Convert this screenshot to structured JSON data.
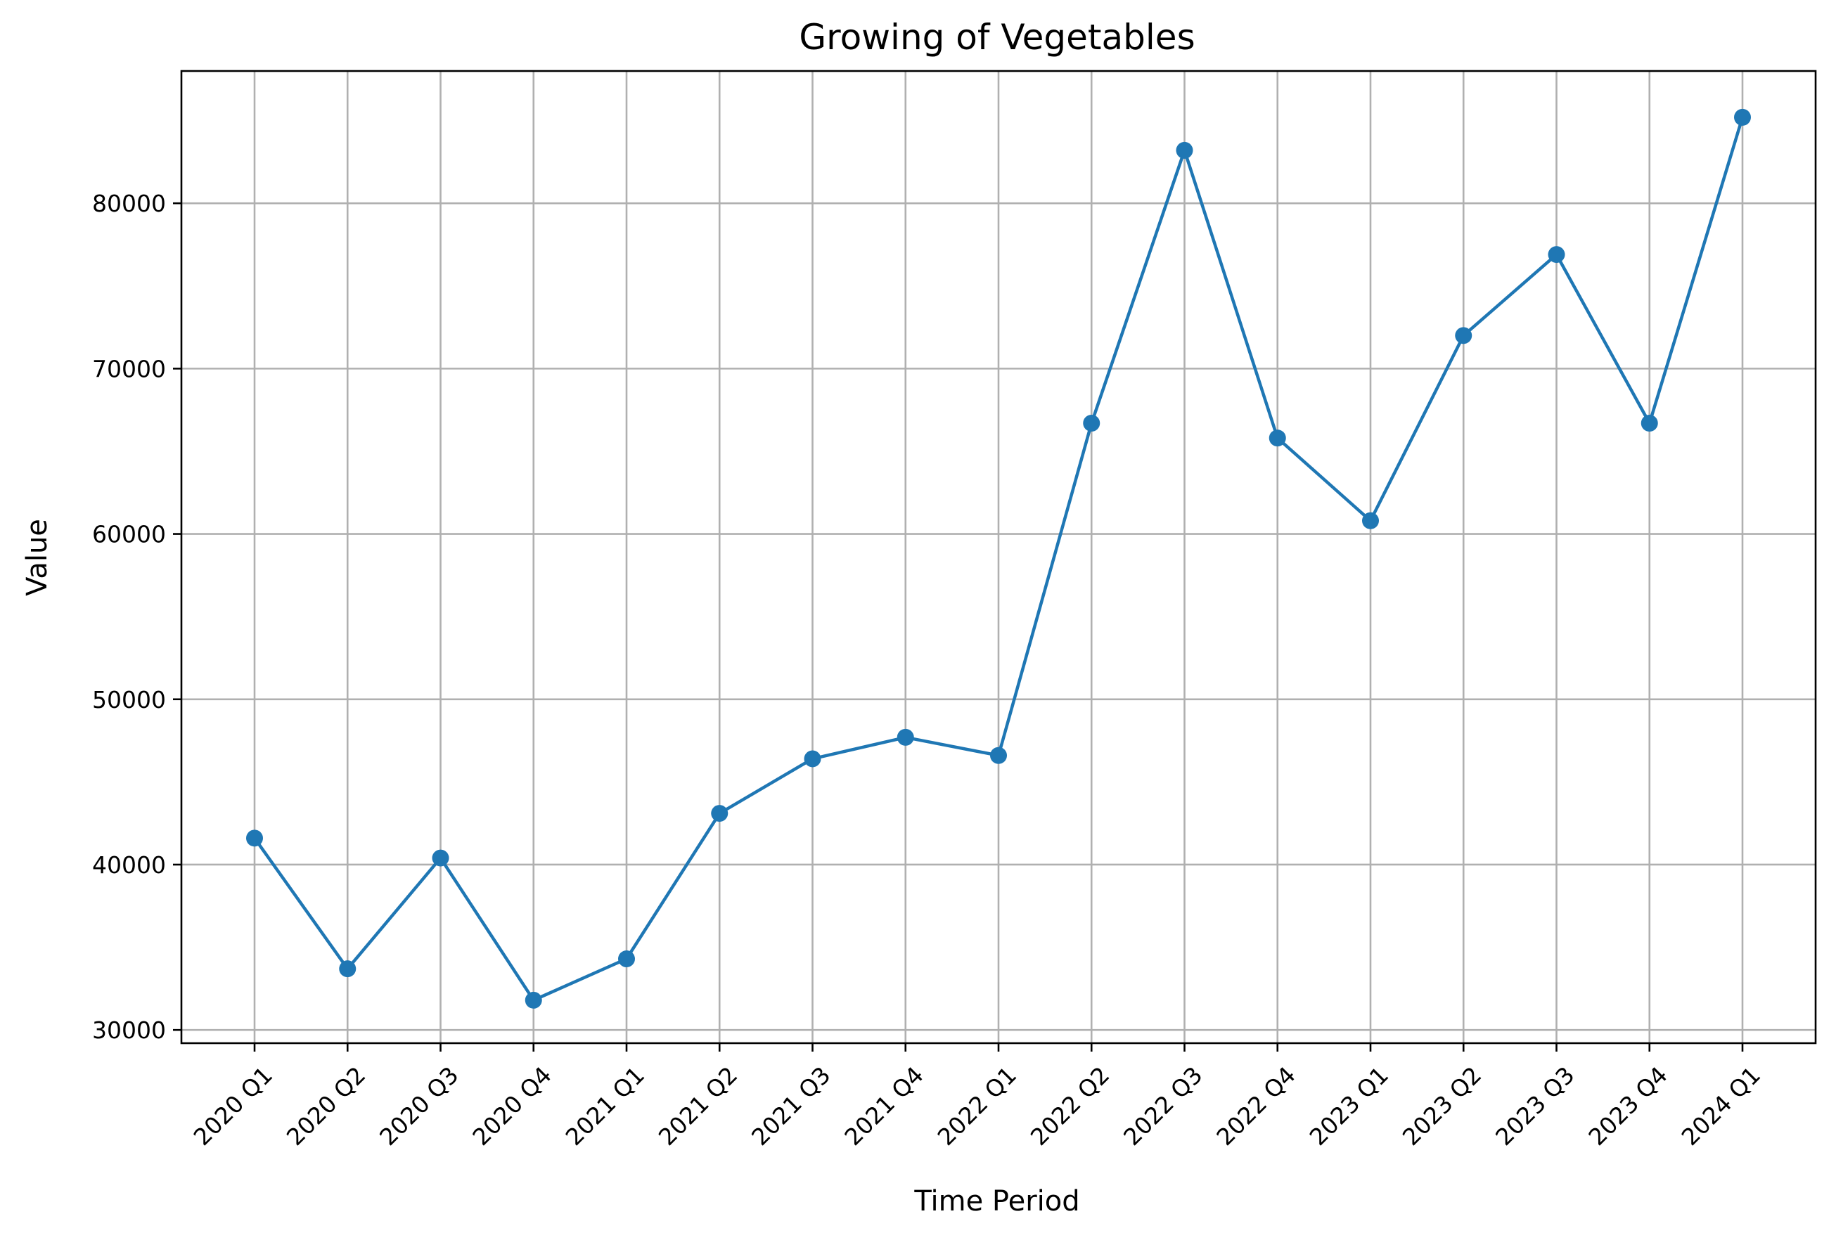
{
  "chart_data": {
    "type": "line",
    "title": "Growing of Vegetables",
    "xlabel": "Time Period",
    "ylabel": "Value",
    "categories": [
      "2020 Q1",
      "2020 Q2",
      "2020 Q3",
      "2020 Q4",
      "2021 Q1",
      "2021 Q2",
      "2021 Q3",
      "2021 Q4",
      "2022 Q1",
      "2022 Q2",
      "2022 Q3",
      "2022 Q4",
      "2023 Q1",
      "2023 Q2",
      "2023 Q3",
      "2023 Q4",
      "2024 Q1"
    ],
    "series": [
      {
        "values": [
          41600,
          33700,
          40400,
          31800,
          34300,
          43100,
          46400,
          47700,
          46600,
          66700,
          83200,
          65800,
          60800,
          72000,
          76900,
          66700,
          85200
        ]
      }
    ],
    "ylim": [
      29200,
      88000
    ],
    "yticks": [
      30000,
      40000,
      50000,
      60000,
      70000,
      80000
    ],
    "ytick_labels": [
      "30000",
      "40000",
      "50000",
      "60000",
      "70000",
      "80000"
    ],
    "grid": true,
    "colors": {
      "line": "#1f77b4",
      "marker": "#1f77b4",
      "grid": "#b0b0b0",
      "axes": "#000000",
      "background": "#ffffff"
    }
  }
}
